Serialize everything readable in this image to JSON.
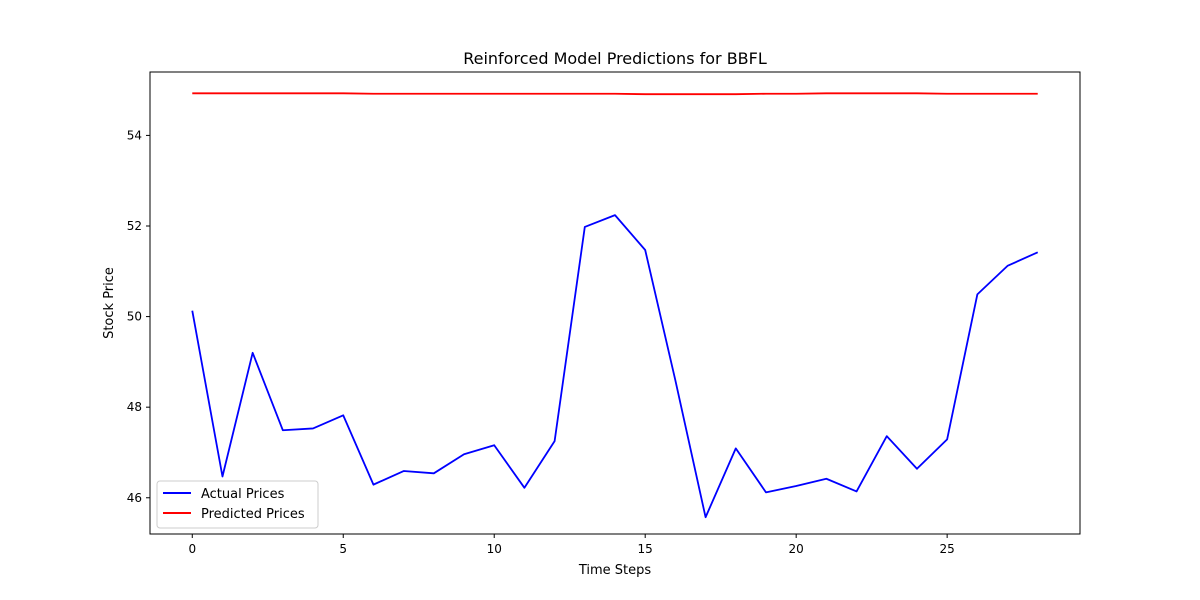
{
  "chart_data": {
    "type": "line",
    "title": "Reinforced Model Predictions for BBFL",
    "xlabel": "Time Steps",
    "ylabel": "Stock Price",
    "xlim": [
      -1.4,
      29.4
    ],
    "ylim": [
      45.2,
      55.4
    ],
    "xticks": [
      0,
      5,
      10,
      15,
      20,
      25
    ],
    "yticks": [
      46,
      48,
      50,
      52,
      54
    ],
    "grid": false,
    "legend_position": "lower-left",
    "x": [
      0,
      1,
      2,
      3,
      4,
      5,
      6,
      7,
      8,
      9,
      10,
      11,
      12,
      13,
      14,
      15,
      16,
      17,
      18,
      19,
      20,
      21,
      22,
      23,
      24,
      25,
      26,
      27,
      28
    ],
    "series": [
      {
        "name": "Actual Prices",
        "color": "#0000ff",
        "values": [
          50.13,
          46.47,
          49.2,
          47.49,
          47.53,
          47.82,
          46.29,
          46.59,
          46.54,
          46.96,
          47.16,
          46.22,
          47.25,
          51.98,
          52.24,
          51.47,
          48.59,
          45.57,
          47.09,
          46.12,
          46.26,
          46.42,
          46.14,
          47.36,
          46.64,
          47.29,
          50.49,
          51.12,
          51.42
        ]
      },
      {
        "name": "Predicted Prices",
        "color": "#ff0000",
        "values": [
          54.93,
          54.93,
          54.93,
          54.93,
          54.93,
          54.93,
          54.92,
          54.92,
          54.92,
          54.92,
          54.92,
          54.92,
          54.92,
          54.92,
          54.92,
          54.91,
          54.91,
          54.91,
          54.91,
          54.92,
          54.92,
          54.93,
          54.93,
          54.93,
          54.93,
          54.92,
          54.92,
          54.92,
          54.92
        ]
      }
    ]
  }
}
